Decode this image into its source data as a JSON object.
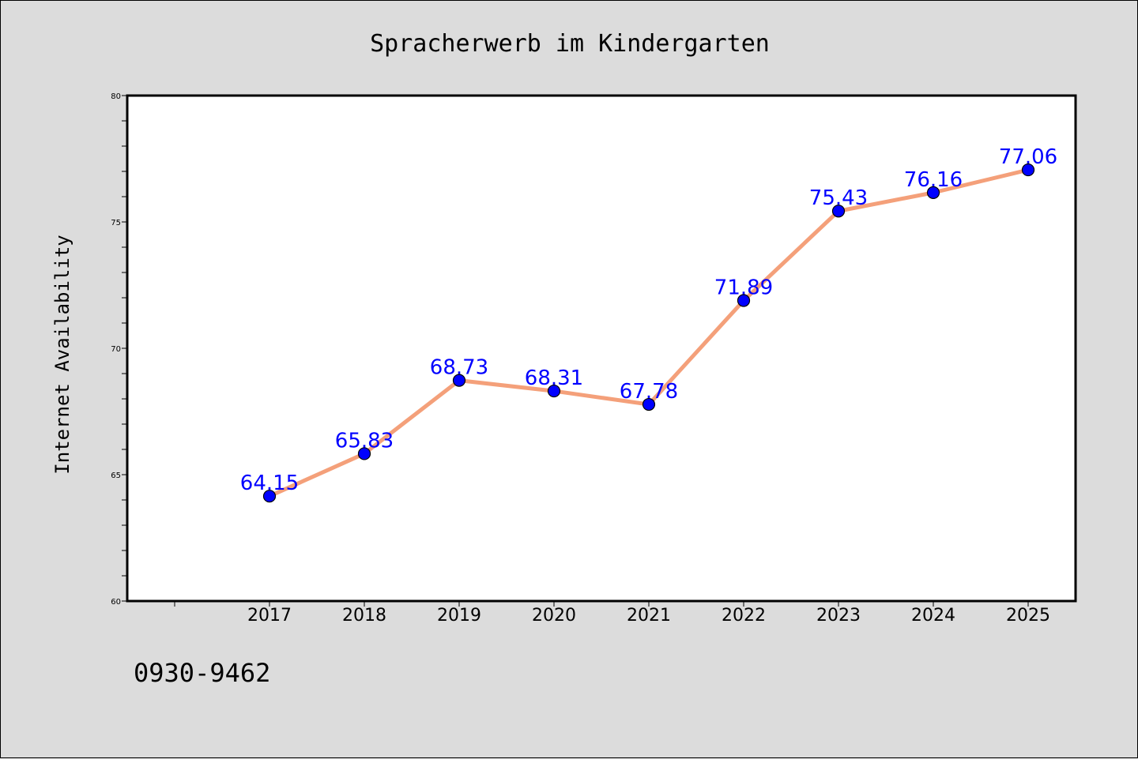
{
  "chart_data": {
    "type": "line",
    "title": "Spracherwerb im Kindergarten",
    "xlabel": "",
    "ylabel": "Internet Availability",
    "categories": [
      "2017",
      "2018",
      "2019",
      "2020",
      "2021",
      "2022",
      "2023",
      "2024",
      "2025"
    ],
    "series": [
      {
        "values": [
          64.15,
          65.83,
          68.73,
          68.31,
          67.78,
          71.89,
          75.43,
          76.16,
          77.06
        ],
        "labels": [
          "64.15",
          "65.83",
          "68.73",
          "68.31",
          "67.78",
          "71.89",
          "75.43",
          "76.16",
          "77.06"
        ]
      }
    ],
    "ylim": [
      60,
      80
    ],
    "yticks": [
      "60",
      "65",
      "70",
      "75",
      "80"
    ],
    "grid": false,
    "colors": {
      "line": "#f4a07a",
      "marker": "#0000ff",
      "label": "#0000ff"
    }
  },
  "footer": {
    "code": "0930-9462"
  }
}
